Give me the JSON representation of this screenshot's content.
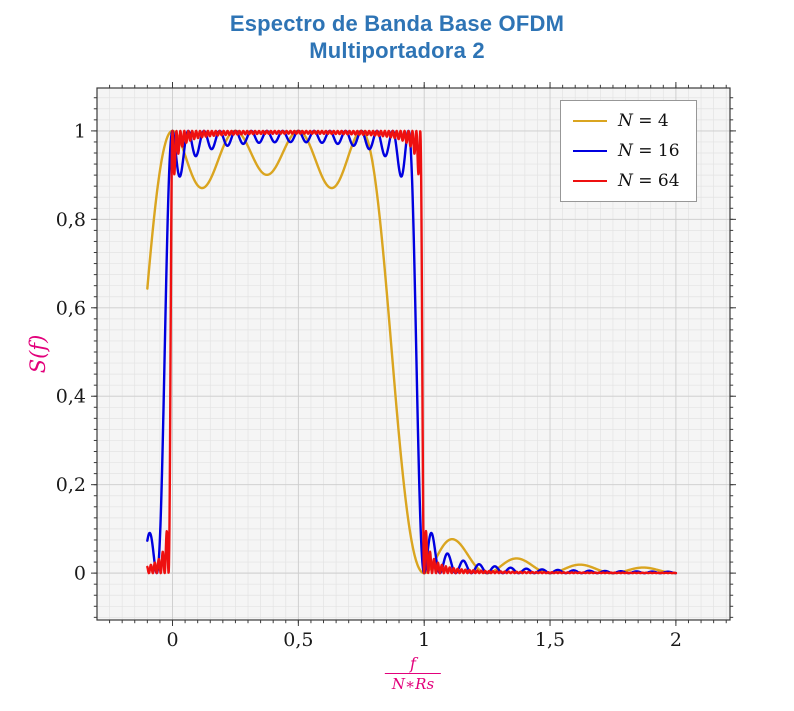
{
  "title": {
    "line1": "Espectro de Banda Base OFDM",
    "line2": "Multiportadora 2",
    "color": "#2E74B5"
  },
  "axes": {
    "x": {
      "min": -0.3,
      "max": 2.215,
      "minor_step": 0.05,
      "ticks": [
        {
          "v": 0,
          "label": "0"
        },
        {
          "v": 0.5,
          "label": "0,5"
        },
        {
          "v": 1,
          "label": "1"
        },
        {
          "v": 1.5,
          "label": "1,5"
        },
        {
          "v": 2,
          "label": "2"
        }
      ],
      "label_numerator": "f",
      "label_denominator": "N∗Rs",
      "label_color": "#E2007B"
    },
    "y": {
      "min": -0.106,
      "max": 1.097,
      "minor_step": 0.025,
      "ticks": [
        {
          "v": 0,
          "label": "0"
        },
        {
          "v": 0.2,
          "label": "0,2"
        },
        {
          "v": 0.4,
          "label": "0,4"
        },
        {
          "v": 0.6,
          "label": "0,6"
        },
        {
          "v": 0.8,
          "label": "0,8"
        },
        {
          "v": 1,
          "label": "1"
        }
      ],
      "label": "S(f)",
      "label_color": "#E2007B"
    }
  },
  "legend": {
    "position": "top-right",
    "items": [
      {
        "label": "N = 4",
        "var": "N",
        "rest": " = 4",
        "color": "#DAA520"
      },
      {
        "label": "N = 16",
        "var": "N",
        "rest": " = 16",
        "color": "#0000E0"
      },
      {
        "label": "N = 64",
        "var": "N",
        "rest": " = 64",
        "color": "#EE1010"
      }
    ]
  },
  "chart_data": {
    "type": "line",
    "title": "Espectro de Banda Base OFDM Multiportadora 2",
    "xlabel": "f/(N∗Rs)",
    "ylabel": "S(f)",
    "xlim": [
      -0.3,
      2.215
    ],
    "ylim": [
      -0.106,
      1.097
    ],
    "grid": true,
    "legend_position": "top-right",
    "x_data_range": [
      -0.1,
      2.0
    ],
    "sample_step": 0.001,
    "model": "S_N(x) = sum_{k=0}^{N-1} sinc^2(N*x - k), with sinc(t) = sin(pi*t)/(pi*t); subcarriers centered at x = k/N",
    "series": [
      {
        "name": "N = 4",
        "N": 4,
        "color": "#DAA520",
        "passband": [
          0,
          0.75
        ],
        "peak": 1.0,
        "ripple_min": 0.9,
        "value_at_x_-0.1": 0.64,
        "first_sidelobe": {
          "x": 1.125,
          "y": 0.075
        }
      },
      {
        "name": "N = 16",
        "N": 16,
        "color": "#0000E0",
        "passband": [
          0,
          0.9375
        ],
        "peak": 1.0,
        "ripple_min": 0.965,
        "value_at_x_-0.1": 0.07,
        "first_sidelobe": {
          "x": 1.031,
          "y": 0.088
        }
      },
      {
        "name": "N = 64",
        "N": 64,
        "color": "#EE1010",
        "passband": [
          0,
          0.9844
        ],
        "peak": 1.0,
        "ripple_min": 0.99,
        "value_at_x_-0.1": 0.005,
        "first_sidelobe": {
          "x": 1.008,
          "y": 0.09
        }
      }
    ]
  },
  "style": {
    "plot_bg": "#F5F5F5",
    "grid_minor": "#E3E3E3",
    "grid_major": "#CDCDCD",
    "frame": "#3A3A3A",
    "tick_label_color": "#1A1A1A",
    "line_width": 2.4
  }
}
